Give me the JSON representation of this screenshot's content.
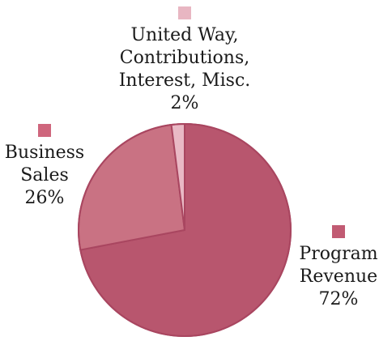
{
  "chart_data": {
    "type": "pie",
    "title": "",
    "slices": [
      {
        "key": "program",
        "label_lines": [
          "Program",
          "Revenue",
          "72%"
        ],
        "value": 72,
        "color": "#b8566e",
        "swatch_color": "#c15b73"
      },
      {
        "key": "business",
        "label_lines": [
          "Business",
          "Sales",
          "26%"
        ],
        "value": 26,
        "color": "#c97283",
        "swatch_color": "#cf667d"
      },
      {
        "key": "other",
        "label_lines": [
          "United Way,",
          "Contributions,",
          "Interest, Misc.",
          "2%"
        ],
        "value": 2,
        "color": "#e9b9c5",
        "swatch_color": "#e8b6c2"
      }
    ],
    "outline_color": "#a94660"
  }
}
